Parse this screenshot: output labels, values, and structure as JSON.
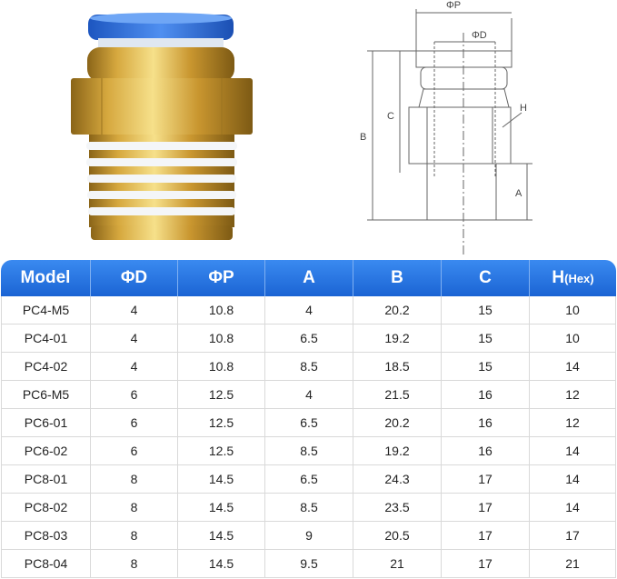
{
  "drawing": {
    "labels": {
      "phi_p": "ΦP",
      "phi_d": "ΦD",
      "c": "C",
      "b": "B",
      "h": "H",
      "a": "A"
    }
  },
  "table": {
    "headers": [
      "Model",
      "ΦD",
      "ΦP",
      "A",
      "B",
      "C",
      {
        "main": "H",
        "sub": "(Hex)"
      }
    ],
    "rows": [
      [
        "PC4-M5",
        4,
        10.8,
        4,
        20.2,
        15,
        10
      ],
      [
        "PC4-01",
        4,
        10.8,
        6.5,
        19.2,
        15,
        10
      ],
      [
        "PC4-02",
        4,
        10.8,
        8.5,
        18.5,
        15,
        14
      ],
      [
        "PC6-M5",
        6,
        12.5,
        4,
        21.5,
        16,
        12
      ],
      [
        "PC6-01",
        6,
        12.5,
        6.5,
        20.2,
        16,
        12
      ],
      [
        "PC6-02",
        6,
        12.5,
        8.5,
        19.2,
        16,
        14
      ],
      [
        "PC8-01",
        8,
        14.5,
        6.5,
        24.3,
        17,
        14
      ],
      [
        "PC8-02",
        8,
        14.5,
        8.5,
        23.5,
        17,
        14
      ],
      [
        "PC8-03",
        8,
        14.5,
        9,
        20.5,
        17,
        17
      ],
      [
        "PC8-04",
        8,
        14.5,
        9.5,
        21,
        17,
        21
      ]
    ]
  }
}
